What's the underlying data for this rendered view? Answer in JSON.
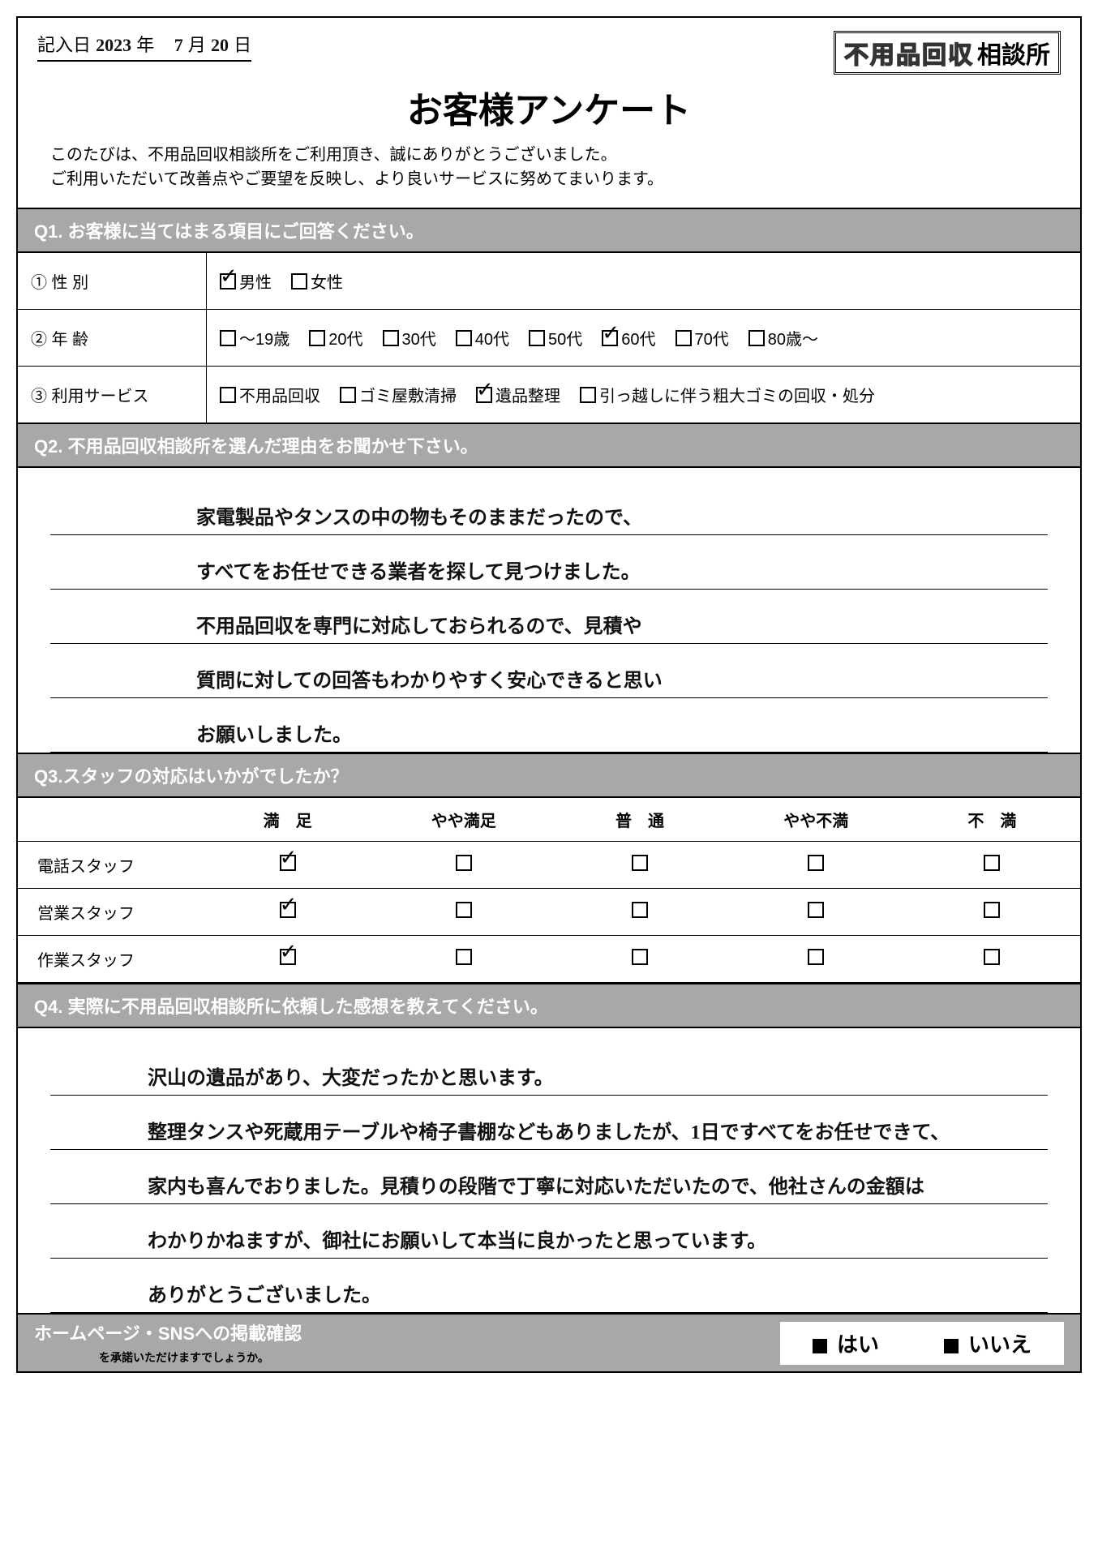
{
  "header": {
    "date_label_pre": "記入日",
    "year": "2023",
    "year_suffix": "年",
    "month": "7",
    "month_suffix": "月",
    "day": "20",
    "day_suffix": "日",
    "logo_outline": "不用品回収",
    "logo_solid": "相談所"
  },
  "title": "お客様アンケート",
  "intro_line1": "このたびは、不用品回収相談所をご利用頂き、誠にありがとうございました。",
  "intro_line2": "ご利用いただいて改善点やご要望を反映し、より良いサービスに努めてまいります。",
  "q1": {
    "heading": "Q1. お客様に当てはまる項目にご回答ください。",
    "rows": [
      {
        "label": "① 性 別",
        "options": [
          {
            "text": "男性",
            "checked": true
          },
          {
            "text": "女性",
            "checked": false
          }
        ]
      },
      {
        "label": "② 年 齢",
        "options": [
          {
            "text": "〜19歳",
            "checked": false
          },
          {
            "text": "20代",
            "checked": false
          },
          {
            "text": "30代",
            "checked": false
          },
          {
            "text": "40代",
            "checked": false
          },
          {
            "text": "50代",
            "checked": false
          },
          {
            "text": "60代",
            "checked": true
          },
          {
            "text": "70代",
            "checked": false
          },
          {
            "text": "80歳〜",
            "checked": false
          }
        ]
      },
      {
        "label": "③ 利用サービス",
        "options": [
          {
            "text": "不用品回収",
            "checked": false
          },
          {
            "text": "ゴミ屋敷清掃",
            "checked": false
          },
          {
            "text": "遺品整理",
            "checked": true
          },
          {
            "text": "引っ越しに伴う粗大ゴミの回収・処分",
            "checked": false
          }
        ]
      }
    ]
  },
  "q2": {
    "heading": "Q2. 不用品回収相談所を選んだ理由をお聞かせ下さい。",
    "lines": [
      "家電製品やタンスの中の物もそのままだったので、",
      "すべてをお任せできる業者を探して見つけました。",
      "不用品回収を専門に対応しておられるので、見積や",
      "質問に対しての回答もわかりやすく安心できると思い",
      "お願いしました。"
    ]
  },
  "q3": {
    "heading": "Q3.スタッフの対応はいかがでしたか？",
    "columns": [
      "満　足",
      "やや満足",
      "普　通",
      "やや不満",
      "不　満"
    ],
    "rows": [
      {
        "label": "電話スタッフ",
        "checked_index": 0
      },
      {
        "label": "営業スタッフ",
        "checked_index": 0
      },
      {
        "label": "作業スタッフ",
        "checked_index": 0
      }
    ]
  },
  "q4": {
    "heading": "Q4. 実際に不用品回収相談所に依頼した感想を教えてください。",
    "lines": [
      "沢山の遺品があり、大変だったかと思います。",
      "整理タンスや死蔵用テーブルや椅子書棚などもありましたが、1日ですべてをお任せできて、",
      "家内も喜んでおりました。見積りの段階で丁寧に対応いただいたので、他社さんの金額は",
      "わかりかねますが、御社にお願いして本当に良かったと思っています。",
      "ありがとうございました。"
    ]
  },
  "final": {
    "label": "ホームページ・SNSへの掲載確認",
    "sub": "を承諾いただけますでしょうか。",
    "yes": "はい",
    "no": "いいえ"
  }
}
